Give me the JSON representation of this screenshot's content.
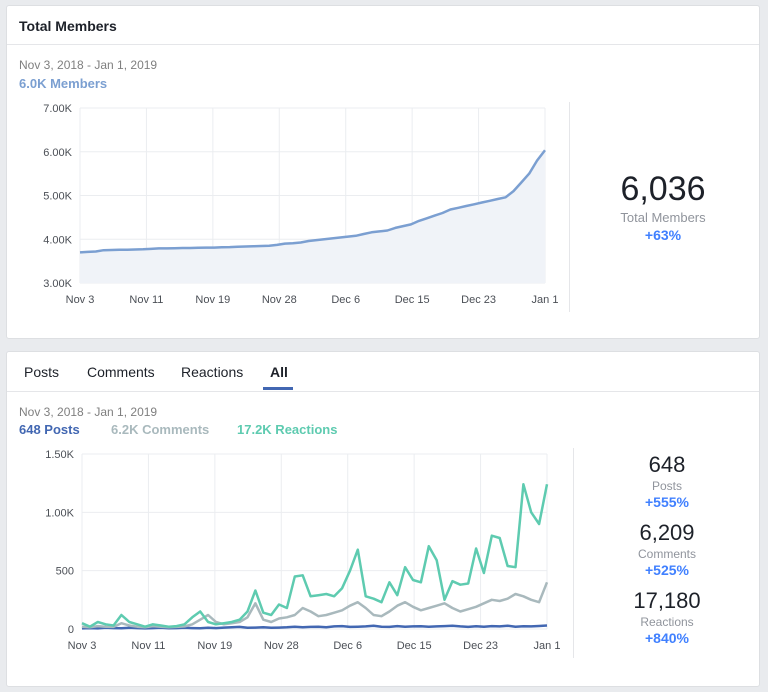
{
  "members_card": {
    "title": "Total Members",
    "date_range": "Nov 3, 2018 - Jan 1, 2019",
    "metric_label": "6.0K Members",
    "stat": {
      "value": "6,036",
      "label": "Total Members",
      "change": "+63%"
    }
  },
  "activity_card": {
    "tabs": [
      "Posts",
      "Comments",
      "Reactions",
      "All"
    ],
    "active_tab": "All",
    "date_range": "Nov 3, 2018 - Jan 1, 2019",
    "metrics": [
      {
        "label": "648 Posts",
        "color": "#4267b2"
      },
      {
        "label": "6.2K Comments",
        "color": "#a9b9bd"
      },
      {
        "label": "17.2K Reactions",
        "color": "#5ecbb0"
      }
    ],
    "stats": [
      {
        "value": "648",
        "label": "Posts",
        "change": "+555%"
      },
      {
        "value": "6,209",
        "label": "Comments",
        "change": "+525%"
      },
      {
        "value": "17,180",
        "label": "Reactions",
        "change": "+840%"
      }
    ]
  },
  "chart_data": [
    {
      "type": "area",
      "title": "Total Members",
      "x_tick_labels": [
        "Nov 3",
        "Nov 11",
        "Nov 19",
        "Nov 28",
        "Dec 6",
        "Dec 15",
        "Dec 23",
        "Jan 1"
      ],
      "y_tick_labels": [
        "3.00K",
        "4.00K",
        "5.00K",
        "6.00K",
        "7.00K"
      ],
      "ylim": [
        3000,
        7000
      ],
      "grid": true,
      "series": [
        {
          "name": "Members",
          "color": "#7b9fd1",
          "values": [
            3700,
            3710,
            3720,
            3750,
            3755,
            3760,
            3760,
            3765,
            3770,
            3780,
            3790,
            3790,
            3795,
            3800,
            3800,
            3805,
            3810,
            3810,
            3815,
            3820,
            3830,
            3835,
            3840,
            3845,
            3850,
            3870,
            3900,
            3910,
            3925,
            3960,
            3980,
            4000,
            4020,
            4040,
            4060,
            4080,
            4120,
            4160,
            4180,
            4200,
            4260,
            4300,
            4340,
            4420,
            4480,
            4540,
            4600,
            4680,
            4720,
            4760,
            4800,
            4840,
            4880,
            4920,
            4960,
            5100,
            5300,
            5500,
            5800,
            6036
          ]
        }
      ]
    },
    {
      "type": "line",
      "x_tick_labels": [
        "Nov 3",
        "Nov 11",
        "Nov 19",
        "Nov 28",
        "Dec 6",
        "Dec 15",
        "Dec 23",
        "Jan 1"
      ],
      "y_tick_labels": [
        "0",
        "500",
        "1.00K",
        "1.50K"
      ],
      "ylim": [
        0,
        1500
      ],
      "grid": true,
      "series": [
        {
          "name": "Posts",
          "color": "#4267b2",
          "values": [
            5,
            8,
            5,
            10,
            8,
            6,
            10,
            8,
            5,
            8,
            10,
            6,
            8,
            10,
            8,
            6,
            10,
            8,
            12,
            15,
            18,
            10,
            12,
            15,
            10,
            12,
            15,
            20,
            15,
            18,
            20,
            15,
            22,
            25,
            18,
            20,
            22,
            28,
            20,
            18,
            25,
            20,
            22,
            24,
            20,
            22,
            25,
            28,
            22,
            18,
            24,
            20,
            25,
            22,
            28,
            20,
            24,
            22,
            26,
            30
          ]
        },
        {
          "name": "Comments",
          "color": "#a9b9bd",
          "values": [
            20,
            15,
            25,
            20,
            18,
            50,
            30,
            20,
            15,
            25,
            20,
            15,
            18,
            22,
            40,
            80,
            120,
            60,
            40,
            50,
            60,
            100,
            220,
            80,
            60,
            90,
            100,
            120,
            180,
            150,
            110,
            120,
            140,
            160,
            200,
            230,
            180,
            120,
            110,
            150,
            200,
            230,
            190,
            160,
            180,
            200,
            220,
            180,
            150,
            170,
            190,
            220,
            250,
            240,
            260,
            300,
            280,
            250,
            230,
            400
          ]
        },
        {
          "name": "Reactions",
          "color": "#5ecbb0",
          "values": [
            50,
            20,
            60,
            40,
            30,
            120,
            60,
            40,
            20,
            40,
            30,
            20,
            25,
            40,
            100,
            150,
            60,
            40,
            50,
            60,
            80,
            150,
            330,
            140,
            120,
            210,
            180,
            450,
            460,
            280,
            290,
            300,
            280,
            350,
            500,
            680,
            280,
            260,
            230,
            400,
            290,
            530,
            420,
            400,
            710,
            590,
            250,
            410,
            380,
            390,
            690,
            480,
            800,
            780,
            540,
            530,
            1240,
            1000,
            900,
            1240
          ]
        }
      ]
    }
  ]
}
